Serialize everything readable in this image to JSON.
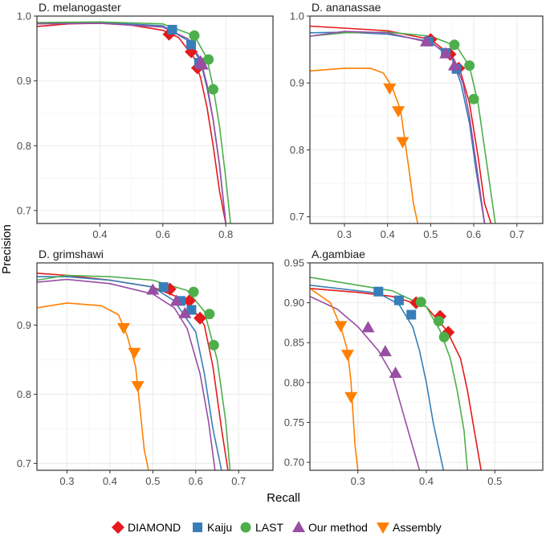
{
  "chart_data": {
    "type": "line",
    "xlabel": "Recall",
    "ylabel": "Precision",
    "colors": {
      "DIAMOND": "#e41a1c",
      "Kaiju": "#377eb8",
      "LAST": "#4daf4a",
      "Our method": "#984ea3",
      "Assembly": "#ff7f00"
    },
    "legend": [
      {
        "name": "DIAMOND",
        "marker": "diamond"
      },
      {
        "name": "Kaiju",
        "marker": "square"
      },
      {
        "name": "LAST",
        "marker": "circle"
      },
      {
        "name": "Our method",
        "marker": "triangle-up"
      },
      {
        "name": "Assembly",
        "marker": "triangle-down"
      }
    ],
    "panels": [
      {
        "title": "D. melanogaster",
        "xlim": [
          0.2,
          0.95
        ],
        "ylim": [
          0.68,
          1.0
        ],
        "xticks": [
          0.4,
          0.6,
          0.8
        ],
        "xtick_labels": [
          "0.4",
          "0.6",
          "0.8"
        ],
        "yticks": [
          0.7,
          0.8,
          0.9,
          1.0
        ],
        "ytick_labels": [
          "0.7",
          "0.8",
          "0.9",
          "1.0"
        ],
        "series": [
          {
            "name": "DIAMOND",
            "x": [
              0.2,
              0.3,
              0.4,
              0.5,
              0.6,
              0.65,
              0.7,
              0.72,
              0.74,
              0.76,
              0.78,
              0.8
            ],
            "y": [
              0.984,
              0.988,
              0.989,
              0.986,
              0.978,
              0.967,
              0.935,
              0.905,
              0.86,
              0.8,
              0.73,
              0.68
            ],
            "markers_x": [
              0.62,
              0.69,
              0.71
            ],
            "markers_y": [
              0.972,
              0.945,
              0.92
            ]
          },
          {
            "name": "Kaiju",
            "x": [
              0.2,
              0.4,
              0.6,
              0.68,
              0.72,
              0.74,
              0.76,
              0.78,
              0.8
            ],
            "y": [
              0.989,
              0.99,
              0.985,
              0.962,
              0.93,
              0.89,
              0.84,
              0.77,
              0.68
            ],
            "markers_x": [
              0.63,
              0.69,
              0.715
            ],
            "markers_y": [
              0.979,
              0.956,
              0.928
            ]
          },
          {
            "name": "LAST",
            "x": [
              0.2,
              0.4,
              0.6,
              0.7,
              0.74,
              0.76,
              0.78,
              0.8,
              0.815
            ],
            "y": [
              0.99,
              0.991,
              0.988,
              0.97,
              0.935,
              0.89,
              0.83,
              0.75,
              0.68
            ],
            "markers_x": [
              0.7,
              0.745,
              0.76
            ],
            "markers_y": [
              0.97,
              0.933,
              0.887
            ]
          },
          {
            "name": "Our method",
            "x": [
              0.2,
              0.4,
              0.6,
              0.68,
              0.72,
              0.74,
              0.76,
              0.78,
              0.8
            ],
            "y": [
              0.988,
              0.989,
              0.983,
              0.965,
              0.933,
              0.895,
              0.84,
              0.77,
              0.68
            ],
            "markers_x": [
              0.72,
              0.725
            ],
            "markers_y": [
              0.93,
              0.925
            ]
          }
        ]
      },
      {
        "title": "D. ananassae",
        "xlim": [
          0.22,
          0.76
        ],
        "ylim": [
          0.69,
          1.0
        ],
        "xticks": [
          0.3,
          0.4,
          0.5,
          0.6,
          0.7
        ],
        "xtick_labels": [
          "0.3",
          "0.4",
          "0.5",
          "0.6",
          "0.7"
        ],
        "yticks": [
          0.7,
          0.8,
          0.9,
          1.0
        ],
        "ytick_labels": [
          "0.7",
          "0.8",
          "0.9",
          "1.0"
        ],
        "series": [
          {
            "name": "DIAMOND",
            "x": [
              0.22,
              0.3,
              0.4,
              0.5,
              0.55,
              0.57,
              0.59,
              0.61,
              0.625,
              0.64
            ],
            "y": [
              0.985,
              0.982,
              0.978,
              0.965,
              0.94,
              0.915,
              0.87,
              0.79,
              0.72,
              0.69
            ],
            "markers_x": [
              0.5,
              0.545,
              0.565
            ],
            "markers_y": [
              0.965,
              0.943,
              0.922
            ]
          },
          {
            "name": "Kaiju",
            "x": [
              0.22,
              0.3,
              0.4,
              0.5,
              0.55,
              0.57,
              0.59,
              0.605,
              0.625
            ],
            "y": [
              0.975,
              0.976,
              0.973,
              0.962,
              0.935,
              0.9,
              0.84,
              0.77,
              0.69
            ],
            "markers_x": [
              0.495,
              0.535,
              0.56
            ],
            "markers_y": [
              0.962,
              0.945,
              0.921
            ]
          },
          {
            "name": "LAST",
            "x": [
              0.22,
              0.3,
              0.4,
              0.5,
              0.56,
              0.59,
              0.61,
              0.63,
              0.65
            ],
            "y": [
              0.97,
              0.975,
              0.976,
              0.97,
              0.955,
              0.925,
              0.87,
              0.78,
              0.69
            ],
            "markers_x": [
              0.555,
              0.59,
              0.6
            ],
            "markers_y": [
              0.957,
              0.926,
              0.876
            ]
          },
          {
            "name": "Our method",
            "x": [
              0.22,
              0.3,
              0.4,
              0.5,
              0.55,
              0.575,
              0.59,
              0.61,
              0.625
            ],
            "y": [
              0.97,
              0.977,
              0.975,
              0.96,
              0.94,
              0.9,
              0.85,
              0.76,
              0.69
            ],
            "markers_x": [
              0.49,
              0.535,
              0.555
            ],
            "markers_y": [
              0.962,
              0.944,
              0.926
            ]
          },
          {
            "name": "Assembly",
            "x": [
              0.22,
              0.3,
              0.36,
              0.39,
              0.41,
              0.43,
              0.44,
              0.45,
              0.46,
              0.47
            ],
            "y": [
              0.918,
              0.922,
              0.922,
              0.915,
              0.895,
              0.86,
              0.815,
              0.77,
              0.72,
              0.69
            ],
            "markers_x": [
              0.405,
              0.425,
              0.435
            ],
            "markers_y": [
              0.892,
              0.858,
              0.812
            ]
          }
        ]
      },
      {
        "title": "D. grimshawi",
        "xlim": [
          0.23,
          0.78
        ],
        "ylim": [
          0.69,
          0.99
        ],
        "xticks": [
          0.3,
          0.4,
          0.5,
          0.6,
          0.7
        ],
        "xtick_labels": [
          "0.3",
          "0.4",
          "0.5",
          "0.6",
          "0.7"
        ],
        "yticks": [
          0.7,
          0.8,
          0.9
        ],
        "ytick_labels": [
          "0.7",
          "0.8",
          "0.9"
        ],
        "series": [
          {
            "name": "DIAMOND",
            "x": [
              0.23,
              0.3,
              0.4,
              0.5,
              0.58,
              0.62,
              0.64,
              0.66,
              0.675
            ],
            "y": [
              0.975,
              0.972,
              0.965,
              0.955,
              0.935,
              0.9,
              0.84,
              0.75,
              0.69
            ],
            "markers_x": [
              0.54,
              0.585,
              0.61
            ],
            "markers_y": [
              0.952,
              0.935,
              0.91
            ]
          },
          {
            "name": "Kaiju",
            "x": [
              0.23,
              0.3,
              0.4,
              0.5,
              0.55,
              0.6,
              0.62,
              0.64,
              0.66
            ],
            "y": [
              0.97,
              0.97,
              0.965,
              0.955,
              0.935,
              0.89,
              0.83,
              0.75,
              0.69
            ],
            "markers_x": [
              0.525,
              0.565,
              0.59
            ],
            "markers_y": [
              0.955,
              0.935,
              0.922
            ]
          },
          {
            "name": "LAST",
            "x": [
              0.23,
              0.3,
              0.4,
              0.5,
              0.58,
              0.62,
              0.65,
              0.67,
              0.68
            ],
            "y": [
              0.965,
              0.972,
              0.97,
              0.965,
              0.95,
              0.92,
              0.85,
              0.76,
              0.69
            ],
            "markers_x": [
              0.595,
              0.632,
              0.642
            ],
            "markers_y": [
              0.948,
              0.916,
              0.871
            ]
          },
          {
            "name": "Our method",
            "x": [
              0.23,
              0.3,
              0.4,
              0.5,
              0.55,
              0.58,
              0.61,
              0.63,
              0.645
            ],
            "y": [
              0.962,
              0.966,
              0.96,
              0.945,
              0.925,
              0.895,
              0.83,
              0.76,
              0.69
            ],
            "markers_x": [
              0.5,
              0.555,
              0.575
            ],
            "markers_y": [
              0.951,
              0.935,
              0.917
            ]
          },
          {
            "name": "Assembly",
            "x": [
              0.23,
              0.3,
              0.38,
              0.42,
              0.44,
              0.46,
              0.47,
              0.48,
              0.49
            ],
            "y": [
              0.925,
              0.932,
              0.928,
              0.915,
              0.885,
              0.84,
              0.78,
              0.72,
              0.69
            ],
            "markers_x": [
              0.432,
              0.457,
              0.465
            ],
            "markers_y": [
              0.896,
              0.86,
              0.812
            ]
          }
        ]
      },
      {
        "title": "A.gambiae",
        "xlim": [
          0.23,
          0.57
        ],
        "ylim": [
          0.69,
          0.95
        ],
        "xticks": [
          0.3,
          0.4,
          0.5
        ],
        "xtick_labels": [
          "0.3",
          "0.4",
          "0.5"
        ],
        "yticks": [
          0.7,
          0.75,
          0.8,
          0.85,
          0.9,
          0.95
        ],
        "ytick_labels": [
          "0.70",
          "0.75",
          "0.80",
          "0.85",
          "0.90",
          "0.95"
        ],
        "series": [
          {
            "name": "DIAMOND",
            "x": [
              0.23,
              0.3,
              0.35,
              0.4,
              0.43,
              0.45,
              0.46,
              0.47,
              0.48
            ],
            "y": [
              0.918,
              0.913,
              0.908,
              0.895,
              0.865,
              0.83,
              0.79,
              0.74,
              0.69
            ],
            "markers_x": [
              0.385,
              0.42,
              0.432
            ],
            "markers_y": [
              0.9,
              0.883,
              0.863
            ]
          },
          {
            "name": "Kaiju",
            "x": [
              0.23,
              0.3,
              0.33,
              0.36,
              0.38,
              0.39,
              0.4,
              0.41,
              0.425
            ],
            "y": [
              0.922,
              0.915,
              0.912,
              0.898,
              0.87,
              0.84,
              0.8,
              0.75,
              0.69
            ],
            "markers_x": [
              0.33,
              0.36,
              0.378
            ],
            "markers_y": [
              0.914,
              0.903,
              0.885
            ]
          },
          {
            "name": "LAST",
            "x": [
              0.23,
              0.3,
              0.35,
              0.4,
              0.42,
              0.435,
              0.445,
              0.455,
              0.46
            ],
            "y": [
              0.932,
              0.922,
              0.915,
              0.895,
              0.865,
              0.83,
              0.79,
              0.74,
              0.69
            ],
            "markers_x": [
              0.392,
              0.418,
              0.426
            ],
            "markers_y": [
              0.901,
              0.877,
              0.857
            ]
          },
          {
            "name": "Our method",
            "x": [
              0.23,
              0.27,
              0.3,
              0.33,
              0.35,
              0.36,
              0.37,
              0.38,
              0.39
            ],
            "y": [
              0.908,
              0.892,
              0.87,
              0.84,
              0.81,
              0.78,
              0.75,
              0.72,
              0.69
            ],
            "markers_x": [
              0.315,
              0.34,
              0.355
            ],
            "markers_y": [
              0.869,
              0.839,
              0.812
            ]
          },
          {
            "name": "Assembly",
            "x": [
              0.23,
              0.26,
              0.275,
              0.285,
              0.29,
              0.293,
              0.296,
              0.3
            ],
            "y": [
              0.918,
              0.9,
              0.87,
              0.84,
              0.8,
              0.76,
              0.72,
              0.69
            ],
            "markers_x": [
              0.275,
              0.285,
              0.29
            ],
            "markers_y": [
              0.871,
              0.835,
              0.782
            ]
          }
        ]
      }
    ]
  }
}
